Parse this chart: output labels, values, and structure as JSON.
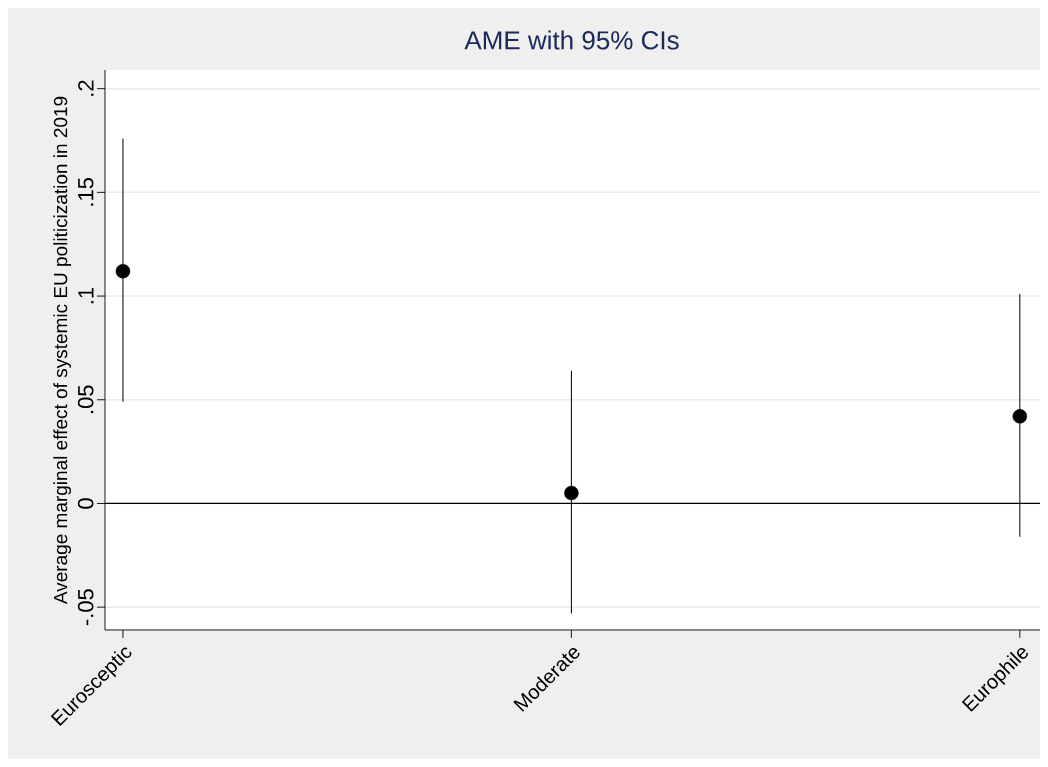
{
  "chart_data": {
    "type": "scatter",
    "title": "AME with 95% CIs",
    "ylabel": "Average marginal effect of systemic EU politicization in 2019",
    "categories": [
      "Eurosceptic",
      "Moderate",
      "Europhile"
    ],
    "values": [
      0.112,
      0.005,
      0.042
    ],
    "errors": [
      [
        0.049,
        0.176
      ],
      [
        -0.053,
        0.064
      ],
      [
        -0.016,
        0.101
      ]
    ],
    "color": "#000000",
    "marker": "circle",
    "ylim": [
      -0.061,
      0.209
    ],
    "yticks": [
      {
        "value": -0.05,
        "label": "-.05"
      },
      0,
      {
        "value": 0.05,
        "label": ".05"
      },
      {
        "value": 0.1,
        "label": ".1"
      },
      {
        "value": 0.15,
        "label": ".15"
      },
      {
        "value": 0.2,
        "label": ".2"
      }
    ],
    "grid": "y",
    "ref_lines": [
      {
        "axis": "y",
        "value": 0,
        "color": "#000000"
      }
    ]
  }
}
